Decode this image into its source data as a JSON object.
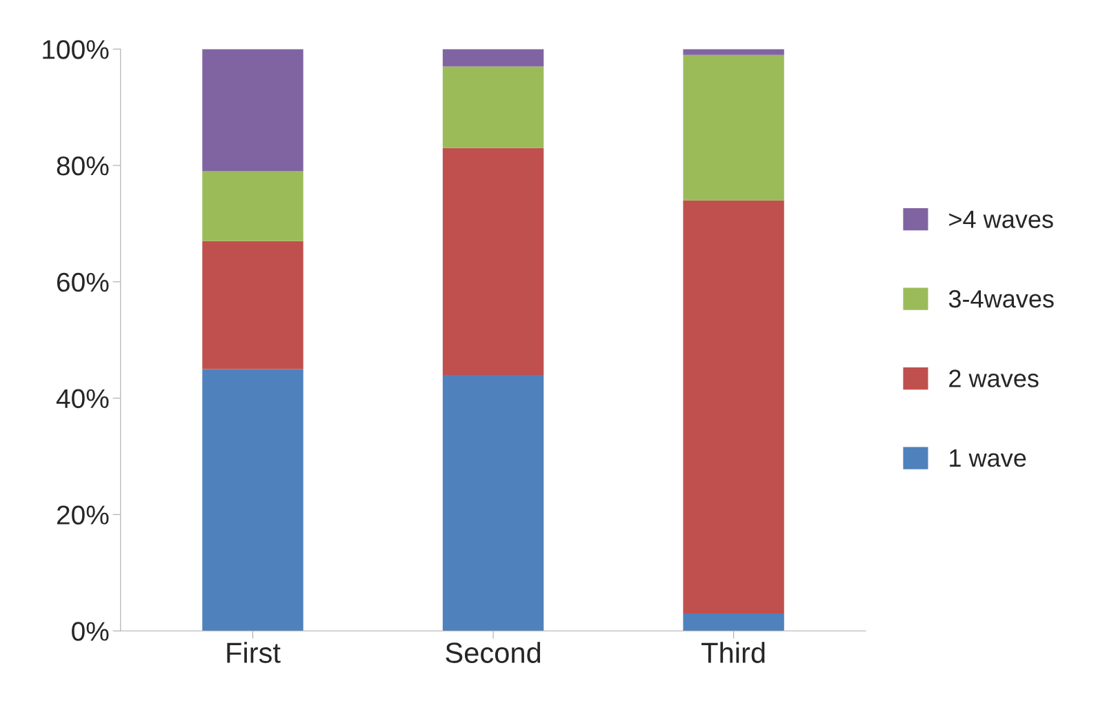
{
  "chart_data": {
    "type": "bar",
    "stacked": true,
    "categories": [
      "First",
      "Second",
      "Third"
    ],
    "series": [
      {
        "name": "1 wave",
        "color": "#4f81bd",
        "values": [
          45,
          44,
          3
        ]
      },
      {
        "name": "2 waves",
        "color": "#c0504d",
        "values": [
          22,
          39,
          71
        ]
      },
      {
        "name": "3-4waves",
        "color": "#9bbb59",
        "values": [
          12,
          14,
          25
        ]
      },
      {
        "name": ">4 waves",
        "color": "#8064a2",
        "values": [
          21,
          3,
          1
        ]
      }
    ],
    "ylim": [
      0,
      100
    ],
    "yticks": [
      {
        "value": 0,
        "label": "0%"
      },
      {
        "value": 20,
        "label": "20%"
      },
      {
        "value": 40,
        "label": "40%"
      },
      {
        "value": 60,
        "label": "60%"
      },
      {
        "value": 80,
        "label": "80%"
      },
      {
        "value": 100,
        "label": "100%"
      }
    ],
    "grid": false,
    "legend": "right"
  }
}
